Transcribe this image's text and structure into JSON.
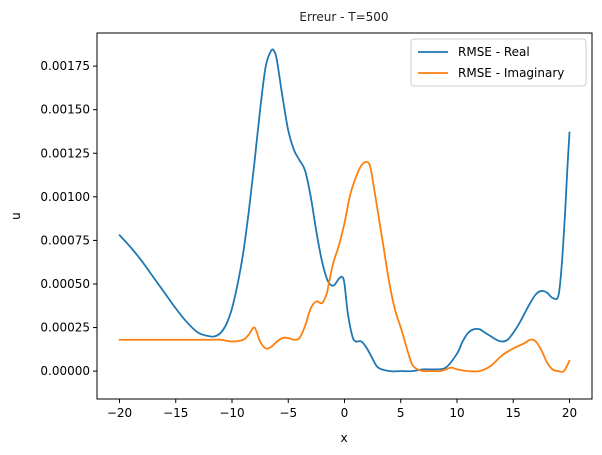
{
  "chart_data": {
    "type": "line",
    "title": "Erreur - T=500",
    "xlabel": "x",
    "ylabel": "u",
    "xlim": [
      -22,
      22
    ],
    "ylim": [
      -0.00016,
      0.00194
    ],
    "xticks": [
      -20,
      -15,
      -10,
      -5,
      0,
      5,
      10,
      15,
      20
    ],
    "xtick_labels": [
      "−20",
      "−15",
      "−10",
      "−5",
      "0",
      "5",
      "10",
      "15",
      "20"
    ],
    "yticks": [
      0,
      0.00025,
      0.0005,
      0.00075,
      0.001,
      0.00125,
      0.0015,
      0.00175
    ],
    "ytick_labels": [
      "0.00000",
      "0.00025",
      "0.00050",
      "0.00075",
      "0.00100",
      "0.00125",
      "0.00150",
      "0.00175"
    ],
    "grid": false,
    "legend": "top-right",
    "series": [
      {
        "name": "RMSE - Real",
        "color": "#1f77b4",
        "x": [
          -20,
          -19,
          -18,
          -17,
          -16,
          -15,
          -14,
          -13,
          -12,
          -11.5,
          -11,
          -10.5,
          -10,
          -9.5,
          -9,
          -8.5,
          -8,
          -7.5,
          -7,
          -6.5,
          -6.2,
          -6,
          -5.5,
          -5,
          -4.5,
          -4,
          -3.5,
          -3,
          -2.5,
          -2,
          -1.5,
          -1,
          -0.5,
          -0.2,
          0,
          0.3,
          0.7,
          1,
          1.5,
          2,
          2.5,
          3,
          4,
          5,
          6,
          7,
          8,
          9,
          10,
          10.5,
          11,
          11.5,
          12,
          12.5,
          13,
          13.5,
          14,
          14.5,
          15,
          15.5,
          16,
          16.5,
          17,
          17.5,
          18,
          18.5,
          19,
          19.3,
          19.6,
          19.8,
          20
        ],
        "y": [
          0.00078,
          0.00071,
          0.00063,
          0.00054,
          0.00045,
          0.00036,
          0.00028,
          0.00022,
          0.0002,
          0.0002,
          0.00022,
          0.00027,
          0.00036,
          0.0005,
          0.00068,
          0.00092,
          0.0012,
          0.0015,
          0.00175,
          0.00184,
          0.00183,
          0.00178,
          0.00157,
          0.00138,
          0.00127,
          0.00121,
          0.00115,
          0.001,
          0.0008,
          0.00063,
          0.00052,
          0.00049,
          0.00053,
          0.00054,
          0.0005,
          0.00033,
          0.0002,
          0.00017,
          0.00017,
          0.00013,
          7e-05,
          2e-05,
          0.0,
          0.0,
          0.0,
          1e-05,
          1e-05,
          2e-05,
          0.0001,
          0.00017,
          0.00022,
          0.00024,
          0.00024,
          0.00022,
          0.0002,
          0.00018,
          0.00017,
          0.00018,
          0.00022,
          0.00027,
          0.00033,
          0.00039,
          0.00044,
          0.00046,
          0.00045,
          0.00042,
          0.00043,
          0.0006,
          0.0009,
          0.00115,
          0.00137
        ]
      },
      {
        "name": "RMSE - Imaginary",
        "color": "#ff7f0e",
        "x": [
          -20,
          -18,
          -16,
          -14,
          -12,
          -11,
          -10,
          -9,
          -8.5,
          -8,
          -7.5,
          -7,
          -6.5,
          -6,
          -5.5,
          -5,
          -4.5,
          -4,
          -3.5,
          -3,
          -2.5,
          -2,
          -1.6,
          -1.4,
          -1,
          -0.5,
          0,
          0.5,
          1,
          1.5,
          2,
          2.3,
          2.6,
          3,
          3.5,
          4,
          4.5,
          5,
          5.5,
          6,
          6.5,
          7,
          7.5,
          8,
          8.5,
          9,
          9.5,
          10,
          11,
          12,
          13,
          14,
          15,
          16,
          16.5,
          17,
          17.5,
          18,
          18.5,
          19,
          19.5,
          20
        ],
        "y": [
          0.00018,
          0.00018,
          0.00018,
          0.00018,
          0.00018,
          0.00018,
          0.00017,
          0.00018,
          0.00021,
          0.00025,
          0.00017,
          0.00013,
          0.00014,
          0.00017,
          0.00019,
          0.00019,
          0.00018,
          0.00019,
          0.00026,
          0.00036,
          0.0004,
          0.00039,
          0.00044,
          0.0005,
          0.00062,
          0.00072,
          0.00085,
          0.00101,
          0.00111,
          0.00118,
          0.0012,
          0.00117,
          0.00106,
          0.0009,
          0.0007,
          0.0005,
          0.00035,
          0.00025,
          0.00014,
          4e-05,
          1e-05,
          0.0,
          0.0,
          0.0,
          0.0,
          1e-05,
          2e-05,
          1e-05,
          0.0,
          0.0,
          3e-05,
          9e-05,
          0.00013,
          0.00016,
          0.00018,
          0.00017,
          0.00012,
          5e-05,
          1e-05,
          0.0,
          0.0,
          6e-05
        ]
      }
    ]
  }
}
